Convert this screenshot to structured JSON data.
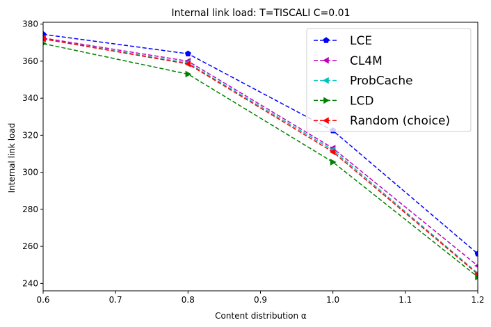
{
  "chart_data": {
    "type": "line",
    "title": "Internal link load: T=TISCALI C=0.01",
    "xlabel": "Content distribution α",
    "ylabel": "Internal link load",
    "xlim": [
      0.6,
      1.2
    ],
    "ylim": [
      236,
      381
    ],
    "xticks": [
      "0.6",
      "0.7",
      "0.8",
      "0.9",
      "1.0",
      "1.1",
      "1.2"
    ],
    "yticks": [
      "240",
      "260",
      "280",
      "300",
      "320",
      "340",
      "360",
      "380"
    ],
    "grid": false,
    "legend_position": "upper-right",
    "x": [
      0.6,
      0.8,
      1.0,
      1.2
    ],
    "series": [
      {
        "name": "LCE",
        "color": "#0000ff",
        "marker": "pentagon",
        "values": [
          374.5,
          364.0,
          322.5,
          256.0
        ]
      },
      {
        "name": "CL4M",
        "color": "#bf00bf",
        "marker": "triangle-left",
        "values": [
          372.5,
          360.0,
          313.0,
          249.5
        ]
      },
      {
        "name": "ProbCache",
        "color": "#00bfbf",
        "marker": "triangle-left",
        "values": [
          372.0,
          359.0,
          312.0,
          245.5
        ]
      },
      {
        "name": "LCD",
        "color": "#008000",
        "marker": "triangle-right",
        "values": [
          369.5,
          353.0,
          305.5,
          243.5
        ]
      },
      {
        "name": "Random (choice)",
        "color": "#ff0000",
        "marker": "triangle-left",
        "values": [
          372.0,
          358.5,
          311.0,
          245.0
        ]
      }
    ]
  }
}
